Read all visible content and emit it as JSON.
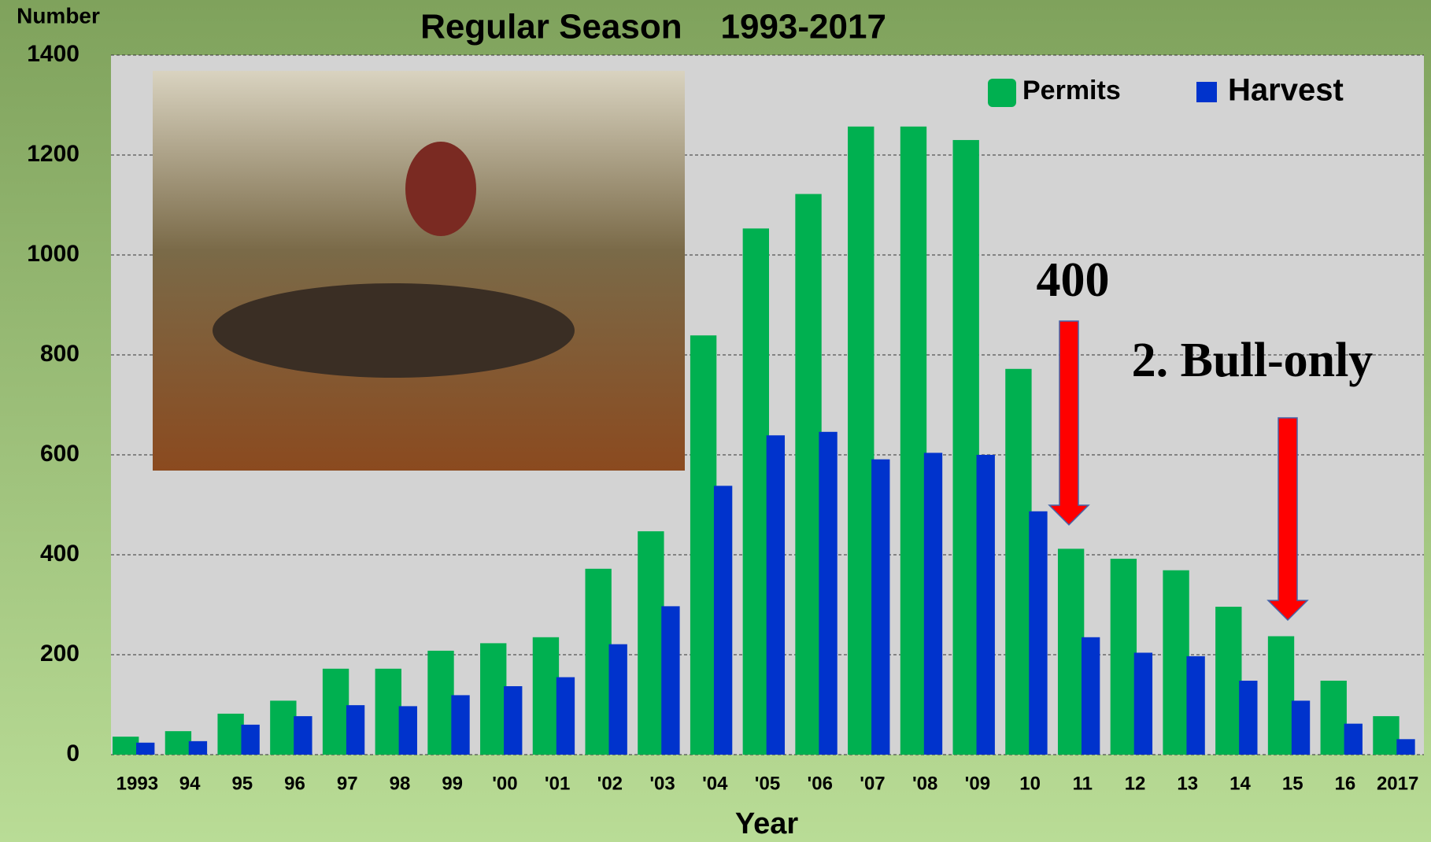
{
  "chart_data": {
    "type": "bar",
    "title": "Regular Season    1993-2017",
    "y_label": "Number",
    "x_label": "Year",
    "categories": [
      "1993",
      "94",
      "95",
      "96",
      "97",
      "98",
      "99",
      "'00",
      "'01",
      "'02",
      "'03",
      "'04",
      "'05",
      "'06",
      "'07",
      "'08",
      "'09",
      "10",
      "11",
      "12",
      "13",
      "14",
      "15",
      "16",
      "2017"
    ],
    "series": [
      {
        "name": "Permits",
        "color": "#00b050",
        "values": [
          36,
          47,
          82,
          108,
          172,
          172,
          208,
          223,
          235,
          372,
          447,
          839,
          1053,
          1122,
          1257,
          1257,
          1230,
          772,
          412,
          392,
          369,
          296,
          237,
          148,
          77
        ]
      },
      {
        "name": "Harvest",
        "color": "#0033cc",
        "values": [
          24,
          27,
          60,
          77,
          99,
          97,
          119,
          137,
          155,
          221,
          297,
          538,
          639,
          646,
          591,
          604,
          600,
          487,
          235,
          204,
          197,
          148,
          108,
          62,
          31
        ]
      }
    ],
    "ylim": [
      0,
      1400
    ],
    "yticks": [
      0,
      200,
      400,
      600,
      800,
      1000,
      1200,
      1400
    ],
    "grid": true,
    "legend": "upper right",
    "annotations": [
      "400",
      "2. Bull-only"
    ]
  }
}
